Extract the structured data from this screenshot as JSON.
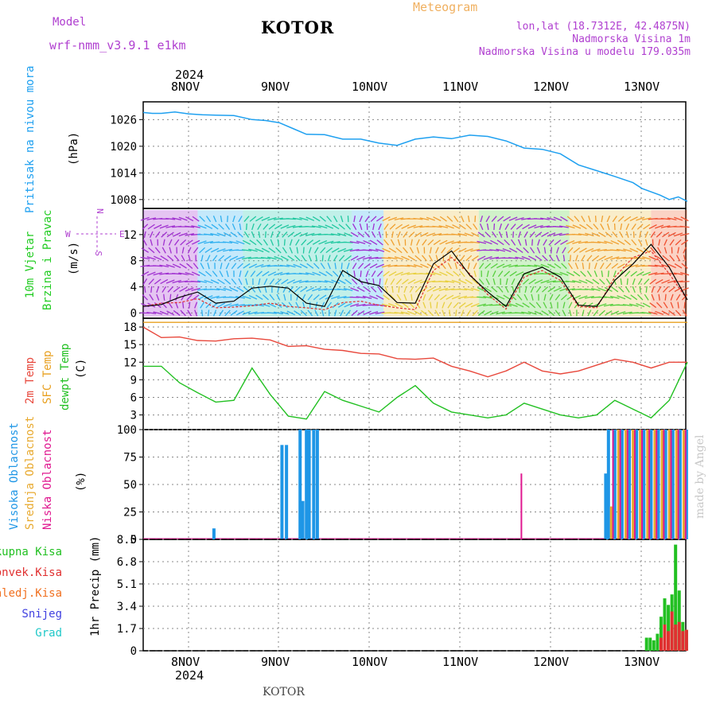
{
  "header": {
    "model_label": "Model",
    "model_name": "wrf-nmm_v3.9.1  e1km",
    "title": "KOTOR",
    "meteogram_label": "Meteogram",
    "coords": "lon,lat (18.7312E, 42.4875N)",
    "elevation": "Nadmorska Visina 1m",
    "model_elevation": "Nadmorska Visina u modelu 179.035m"
  },
  "footer": {
    "station": "KOTOR",
    "credit": "made by Angel"
  },
  "colors": {
    "pressure": "#1ea0f0",
    "temp": "#e8483c",
    "sfc": "#e8a020",
    "dew": "#22c022",
    "wind_title": "#22cc22",
    "high_cloud": "#1e96e6",
    "mid_cloud": "#e8aa30",
    "low_cloud": "#e01890",
    "total_precip": "#22c022",
    "conv_precip": "#e03030",
    "frozen": "#f07020",
    "snow": "#4040e0",
    "grad": "#20c8c8",
    "purple": "#b040d0"
  },
  "chart_data": [
    {
      "type": "line",
      "panel": "pressure",
      "title": "Pritisak na nivou mora",
      "ylabel": "(hPa)",
      "ylim": [
        1006,
        1030
      ],
      "yticks": [
        "1026",
        "1020",
        "1014",
        "1008"
      ],
      "x_days": [
        0,
        0.1,
        0.2,
        0.35,
        0.5,
        0.65,
        0.8,
        1.0,
        1.2,
        1.35,
        1.5,
        1.65,
        1.8,
        2.0,
        2.2,
        2.4,
        2.6,
        2.8,
        3.0,
        3.2,
        3.4,
        3.6,
        3.8,
        4.0,
        4.2,
        4.4,
        4.6,
        4.8,
        5.0,
        5.2,
        5.4,
        5.5,
        5.7,
        5.8,
        5.9,
        6.0
      ],
      "series": [
        {
          "values": [
            1027.6,
            1027.4,
            1027.4,
            1027.7,
            1027.3,
            1027.1,
            1027.0,
            1026.9,
            1026.0,
            1025.8,
            1025.3,
            1024.0,
            1022.7,
            1022.6,
            1021.6,
            1021.6,
            1020.7,
            1020.2,
            1021.6,
            1022.1,
            1021.7,
            1022.5,
            1022.2,
            1021.2,
            1019.6,
            1019.3,
            1018.3,
            1015.8,
            1014.5,
            1013.2,
            1011.8,
            1010.5,
            1009.0,
            1008.0,
            1008.6,
            1007.6
          ]
        }
      ]
    },
    {
      "type": "line",
      "panel": "wind",
      "title": "10m Vjetar Brzina i Pravac",
      "ylabel": "(m/s)",
      "ylim": [
        -0.8,
        16
      ],
      "yticks": [
        "12",
        "8",
        "4",
        "0"
      ],
      "compass": {
        "n": "N",
        "w": "W",
        "e": "E",
        "s": "S"
      },
      "x_days": [
        0,
        0.2,
        0.4,
        0.6,
        0.8,
        1.0,
        1.2,
        1.4,
        1.6,
        1.8,
        2.0,
        2.2,
        2.4,
        2.6,
        2.8,
        3.0,
        3.2,
        3.4,
        3.6,
        3.8,
        4.0,
        4.2,
        4.4,
        4.6,
        4.8,
        5.0,
        5.2,
        5.4,
        5.6,
        5.8,
        6.0
      ],
      "series": [
        {
          "name": "speed",
          "values": [
            1.0,
            1.3,
            2.4,
            3.2,
            1.5,
            1.8,
            3.8,
            4.1,
            3.8,
            1.5,
            1.0,
            6.5,
            4.8,
            4.2,
            1.6,
            1.5,
            7.5,
            9.5,
            5.8,
            3.2,
            1.0,
            6.0,
            7.0,
            5.5,
            1.2,
            1.0,
            5.0,
            7.5,
            10.5,
            7.0,
            2.0
          ]
        },
        {
          "name": "gust",
          "values": [
            1.0,
            1.5,
            1.6,
            2.2,
            0.8,
            0.9,
            1.1,
            1.5,
            1.0,
            0.8,
            0.5,
            1.6,
            1.8,
            1.2,
            0.8,
            0.5,
            6.5,
            8.5,
            6.0,
            2.8,
            0.6,
            5.5,
            6.5,
            5.0,
            1.0,
            0.8,
            5.5,
            8.5,
            9.5,
            6.0,
            2.0
          ]
        }
      ],
      "fill_bands": [
        "purple",
        "cyan",
        "teal",
        "yellow",
        "green",
        "red"
      ]
    },
    {
      "type": "line",
      "panel": "temperature",
      "ylabel": "(C)",
      "legend": [
        "2m Temp",
        "SFC Temp",
        "dewpt Temp"
      ],
      "ylim": [
        0.5,
        19.5
      ],
      "yticks": [
        "18",
        "15",
        "12",
        "9",
        "6",
        "3"
      ],
      "x_days": [
        0,
        0.2,
        0.4,
        0.6,
        0.8,
        1.0,
        1.2,
        1.4,
        1.6,
        1.8,
        2.0,
        2.2,
        2.4,
        2.6,
        2.8,
        3.0,
        3.2,
        3.4,
        3.6,
        3.8,
        4.0,
        4.2,
        4.4,
        4.6,
        4.8,
        5.0,
        5.2,
        5.4,
        5.6,
        5.8,
        6.0
      ],
      "series": [
        {
          "name": "2m Temp",
          "values": [
            18.0,
            16.2,
            16.3,
            15.7,
            15.6,
            16.0,
            16.1,
            15.8,
            14.7,
            14.8,
            14.2,
            14.0,
            13.5,
            13.4,
            12.6,
            12.5,
            12.7,
            11.3,
            10.5,
            9.5,
            10.5,
            12.0,
            10.5,
            10.0,
            10.5,
            11.5,
            12.5,
            12.0,
            11.0,
            12.0,
            12.0
          ]
        },
        {
          "name": "SFC Temp",
          "values": [
            18.8,
            18.8,
            18.8,
            18.8,
            18.8,
            18.8,
            18.8,
            18.8,
            18.8,
            18.8,
            18.8,
            18.8,
            18.8,
            18.8,
            18.8,
            18.8,
            18.8,
            18.8,
            18.8,
            18.8,
            18.8,
            18.8,
            18.8,
            18.8,
            18.8,
            18.8,
            18.8,
            18.8,
            18.8,
            18.8,
            18.8
          ]
        },
        {
          "name": "dewpt Temp",
          "values": [
            11.3,
            11.3,
            8.5,
            6.8,
            5.2,
            5.5,
            11.0,
            6.5,
            2.8,
            2.3,
            7.0,
            5.5,
            4.5,
            3.5,
            6.0,
            8.0,
            5.0,
            3.5,
            3.0,
            2.5,
            3.0,
            5.0,
            4.0,
            3.0,
            2.5,
            3.0,
            5.5,
            4.0,
            2.5,
            5.5,
            12.0
          ]
        }
      ]
    },
    {
      "type": "bar",
      "panel": "clouds",
      "ylabel": "(%)",
      "legend": [
        "Visoka Oblacnost",
        "Srednja Oblacnost",
        "Niska Oblacnost"
      ],
      "ylim": [
        0,
        100
      ],
      "yticks": [
        "100",
        "75",
        "50",
        "25",
        "0"
      ],
      "series": [
        {
          "name": "Visoka Oblacnost",
          "x_days": [
            0.78,
            1.53,
            1.58,
            1.73,
            1.76,
            1.8,
            1.83,
            1.88,
            1.92,
            5.1,
            5.13,
            5.2,
            5.28,
            5.36,
            5.44,
            5.52,
            5.6,
            5.68,
            5.76,
            5.84,
            5.92,
            5.99
          ],
          "values": [
            10,
            86,
            86,
            100,
            35,
            100,
            100,
            100,
            100,
            60,
            100,
            100,
            100,
            100,
            100,
            100,
            100,
            100,
            100,
            100,
            100,
            100
          ]
        },
        {
          "name": "Srednja Oblacnost",
          "x_days": [
            5.16,
            5.24,
            5.32,
            5.4,
            5.48,
            5.56,
            5.64,
            5.72,
            5.8,
            5.88,
            5.96
          ],
          "values": [
            30,
            100,
            100,
            100,
            100,
            100,
            100,
            100,
            100,
            100,
            100
          ]
        },
        {
          "name": "Niska Oblacnost",
          "x_days": [
            4.17,
            5.18,
            5.26,
            5.34,
            5.42,
            5.5,
            5.58,
            5.66,
            5.74,
            5.82,
            5.9,
            5.98
          ],
          "values": [
            60,
            100,
            100,
            100,
            100,
            100,
            100,
            100,
            100,
            100,
            100,
            100
          ]
        }
      ]
    },
    {
      "type": "bar",
      "panel": "precip",
      "ylabel": "1hr Precip (mm)",
      "legend": [
        "Ukupna Kisa",
        "Konvek.Kisa",
        "Zaledj.Kisa",
        "Snijeg",
        "Grad"
      ],
      "ylim": [
        0,
        8.5
      ],
      "yticks": [
        "8.5",
        "6.8",
        "5.1",
        "3.4",
        "1.7",
        "0"
      ],
      "series": [
        {
          "name": "Ukupna Kisa",
          "x_days": [
            5.55,
            5.59,
            5.63,
            5.67,
            5.71,
            5.75,
            5.79,
            5.83,
            5.87,
            5.91,
            5.95,
            5.99
          ],
          "values": [
            1.0,
            1.0,
            0.8,
            1.3,
            2.6,
            4.0,
            3.5,
            4.3,
            8.1,
            4.6,
            2.2,
            1.6
          ]
        },
        {
          "name": "Konvek.Kisa",
          "x_days": [
            5.71,
            5.75,
            5.79,
            5.83,
            5.87,
            5.91,
            5.95,
            5.99
          ],
          "values": [
            1.0,
            2.0,
            1.5,
            3.0,
            2.0,
            2.2,
            1.5,
            1.6
          ]
        }
      ]
    }
  ],
  "x_axis": {
    "year_label": "2024",
    "days": [
      "8NOV",
      "9NOV",
      "10NOV",
      "11NOV",
      "12NOV",
      "13NOV"
    ]
  }
}
